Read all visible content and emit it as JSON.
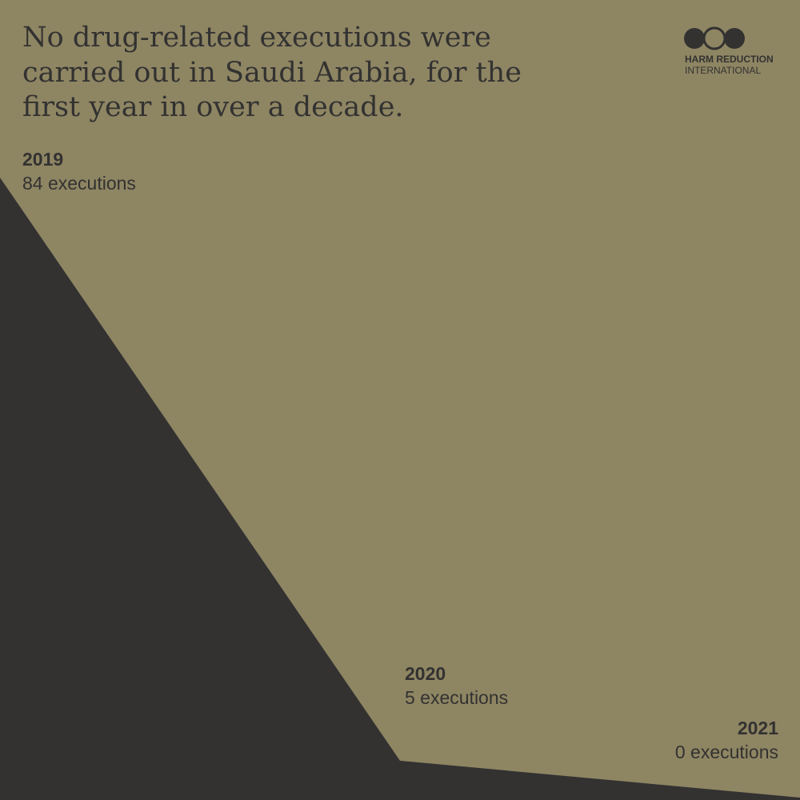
{
  "chart_data": {
    "type": "area",
    "title": [
      "No drug-related executions were",
      "carried out in Saudi Arabia, for the",
      "first year in over a decade."
    ],
    "categories": [
      "2019",
      "2020",
      "2021"
    ],
    "values": [
      84,
      5,
      0
    ],
    "value_labels": [
      "84 executions",
      "5 executions",
      "0 executions"
    ],
    "color": "#333231"
  },
  "logo": [
    "HARM REDUCTION",
    "INTERNATIONAL"
  ]
}
